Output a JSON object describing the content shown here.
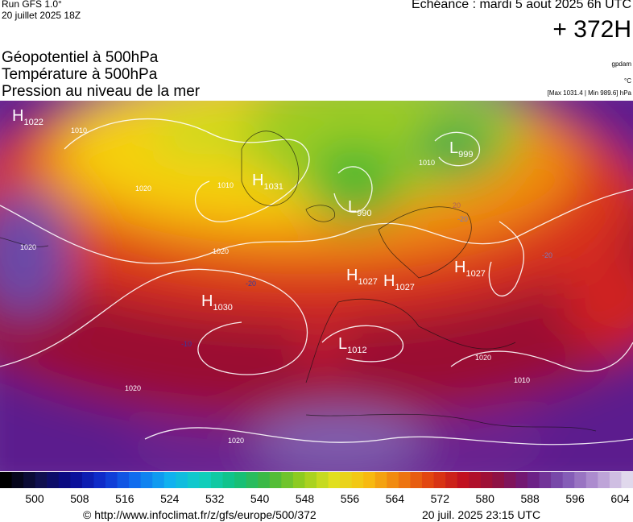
{
  "header": {
    "run": "Run GFS 1.0°",
    "run_date": "20 juillet 2025 18Z",
    "valid": "Echéance : mardi 5 aout 2025 6h UTC",
    "lead": "+ 372H",
    "layers": [
      "Géopotentiel à 500hPa",
      "Température à 500hPa",
      "Pression au niveau de la mer"
    ],
    "units": [
      "gpdam",
      "°C",
      "[Max 1031.4 | Min 989.6] hPa"
    ]
  },
  "map": {
    "centers": [
      {
        "type": "H",
        "value": "1022"
      },
      {
        "type": "H",
        "value": "1031"
      },
      {
        "type": "L",
        "value": "990"
      },
      {
        "type": "L",
        "value": "999"
      },
      {
        "type": "H",
        "value": "1027"
      },
      {
        "type": "H",
        "value": "1027"
      },
      {
        "type": "H",
        "value": "1027"
      },
      {
        "type": "H",
        "value": "1030"
      },
      {
        "type": "L",
        "value": "1012"
      }
    ],
    "contour_labels": [
      "1010",
      "1020",
      "1020",
      "1020",
      "1020",
      "1020",
      "1010",
      "1010",
      "1020",
      "1010",
      "-20",
      "-10",
      "-20",
      "20",
      "-20"
    ]
  },
  "colorbar": {
    "ticks": [
      500,
      508,
      516,
      524,
      532,
      540,
      548,
      556,
      564,
      572,
      580,
      588,
      596,
      604
    ]
  },
  "footer": {
    "source": "© http://www.infoclimat.fr/z/gfs/europe/500/372",
    "generated": "20 juil. 2025 23:15 UTC"
  }
}
